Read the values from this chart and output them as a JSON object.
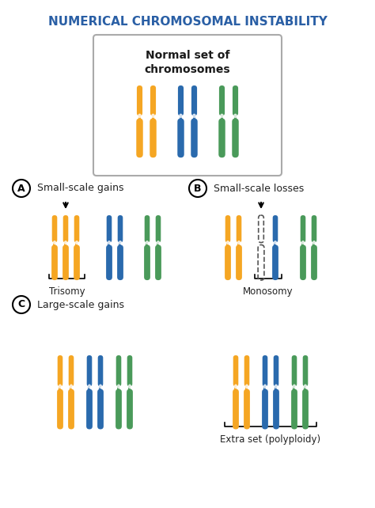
{
  "title": "NUMERICAL CHROMOSOMAL INSTABILITY",
  "title_color": "#2a5fa5",
  "bg_color": "#ffffff",
  "orange": "#f5a623",
  "blue": "#2a6aad",
  "green": "#4a9a5a",
  "section_labels": [
    "A",
    "B",
    "C"
  ],
  "section_titles": [
    "Small-scale gains",
    "Small-scale losses",
    "Large-scale gains"
  ],
  "subsection_labels": [
    "Trisomy",
    "Monosomy",
    "Extra set (polyploidy)"
  ],
  "normal_box_text_1": "Normal set of",
  "normal_box_text_2": "chromosomes"
}
